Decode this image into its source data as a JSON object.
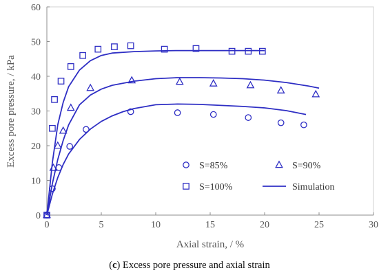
{
  "chart_data": {
    "type": "scatter",
    "xlabel": "Axial strain, / %",
    "ylabel": "Excess pore pressure, / kPa",
    "xlim": [
      0,
      30
    ],
    "ylim": [
      0,
      60
    ],
    "x_ticks": [
      0,
      5,
      10,
      15,
      20,
      25,
      30
    ],
    "y_ticks": [
      0,
      10,
      20,
      30,
      40,
      50,
      60
    ],
    "grid": false,
    "legend_position": "lower-right, inside plot",
    "color": "#2e2ec4",
    "series": [
      {
        "name": "S=85%",
        "marker": "circle",
        "x": [
          0.0,
          0.5,
          1.1,
          2.1,
          3.6,
          7.7,
          12.0,
          15.3,
          18.5,
          21.5,
          23.6
        ],
        "y": [
          0.0,
          7.6,
          13.7,
          19.8,
          24.7,
          29.8,
          29.5,
          29.0,
          28.1,
          26.6,
          26.0
        ]
      },
      {
        "name": "S=90%",
        "marker": "triangle",
        "x": [
          0.0,
          0.6,
          1.0,
          1.5,
          2.2,
          4.0,
          7.8,
          12.2,
          15.3,
          18.7,
          21.5,
          24.7
        ],
        "y": [
          0.0,
          13.6,
          20.0,
          24.3,
          30.9,
          36.6,
          38.8,
          38.4,
          37.9,
          37.4,
          35.9,
          34.8
        ]
      },
      {
        "name": "S=100%",
        "marker": "square",
        "x": [
          0.0,
          0.5,
          0.7,
          1.3,
          2.2,
          3.3,
          4.7,
          6.2,
          7.7,
          10.8,
          13.7,
          17.0,
          18.5,
          19.8
        ],
        "y": [
          0.0,
          25.0,
          33.3,
          38.6,
          42.8,
          46.0,
          47.8,
          48.5,
          48.8,
          47.8,
          48.0,
          47.2,
          47.2,
          47.2
        ]
      },
      {
        "name": "Simulation",
        "style": "line",
        "curves": [
          {
            "x": [
              0,
              0.5,
              1,
              1.5,
              2,
              3,
              4,
              5,
              6,
              8,
              10,
              12,
              14,
              16,
              18,
              20
            ],
            "y": [
              0,
              15,
              26,
              32.5,
              37,
              41.8,
              44.5,
              46,
              46.7,
              47.1,
              47.3,
              47.4,
              47.4,
              47.4,
              47.4,
              47.4
            ]
          },
          {
            "x": [
              0,
              0.5,
              1,
              1.5,
              2,
              3,
              4,
              5,
              6,
              8,
              10,
              12,
              14,
              16,
              18,
              20,
              22,
              24,
              25
            ],
            "y": [
              0,
              9,
              16,
              21.5,
              26,
              31.8,
              34.6,
              36.3,
              37.4,
              38.6,
              39.3,
              39.6,
              39.6,
              39.5,
              39.3,
              38.9,
              38.2,
              37.2,
              36.6
            ]
          },
          {
            "x": [
              0,
              0.5,
              1,
              1.5,
              2,
              3,
              4,
              5,
              6,
              7,
              8,
              10,
              12,
              14,
              16,
              18,
              20,
              22,
              23.8
            ],
            "y": [
              0,
              6,
              10.8,
              14.6,
              17.6,
              21.8,
              24.8,
              27,
              28.6,
              29.8,
              30.7,
              31.8,
              32,
              31.9,
              31.6,
              31.3,
              30.9,
              30.1,
              29.0
            ]
          }
        ]
      }
    ]
  },
  "caption": {
    "label": "c",
    "text": " Excess pore pressure and axial strain"
  }
}
